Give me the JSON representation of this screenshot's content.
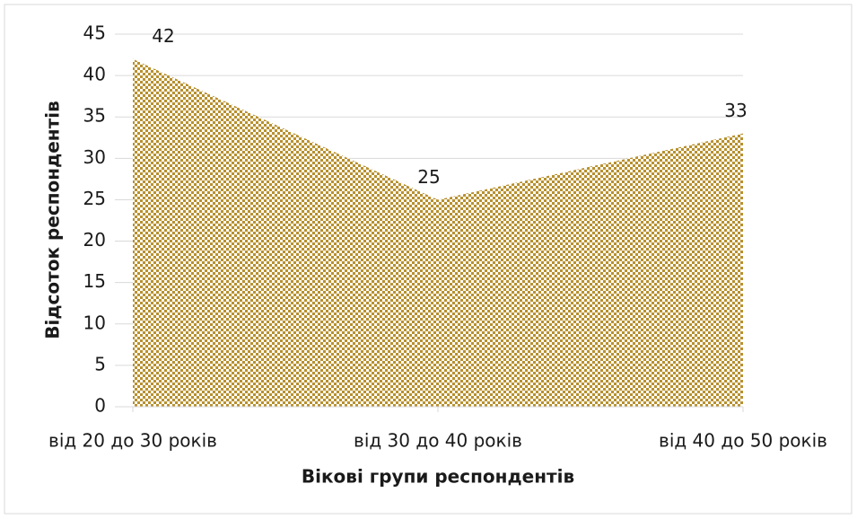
{
  "chart_data": {
    "type": "area",
    "categories": [
      "від 20 до 30 років",
      "від 30 до 40 років",
      "від 40 до 50 років"
    ],
    "values": [
      42,
      25,
      33
    ],
    "color": "#b8902e",
    "xlabel": "Вікові групи респондентів",
    "ylabel": "Відсоток респондентів",
    "ylim": [
      0,
      45
    ],
    "yticks": [
      0,
      5,
      10,
      15,
      20,
      25,
      30,
      35,
      40,
      45
    ],
    "grid": true
  }
}
